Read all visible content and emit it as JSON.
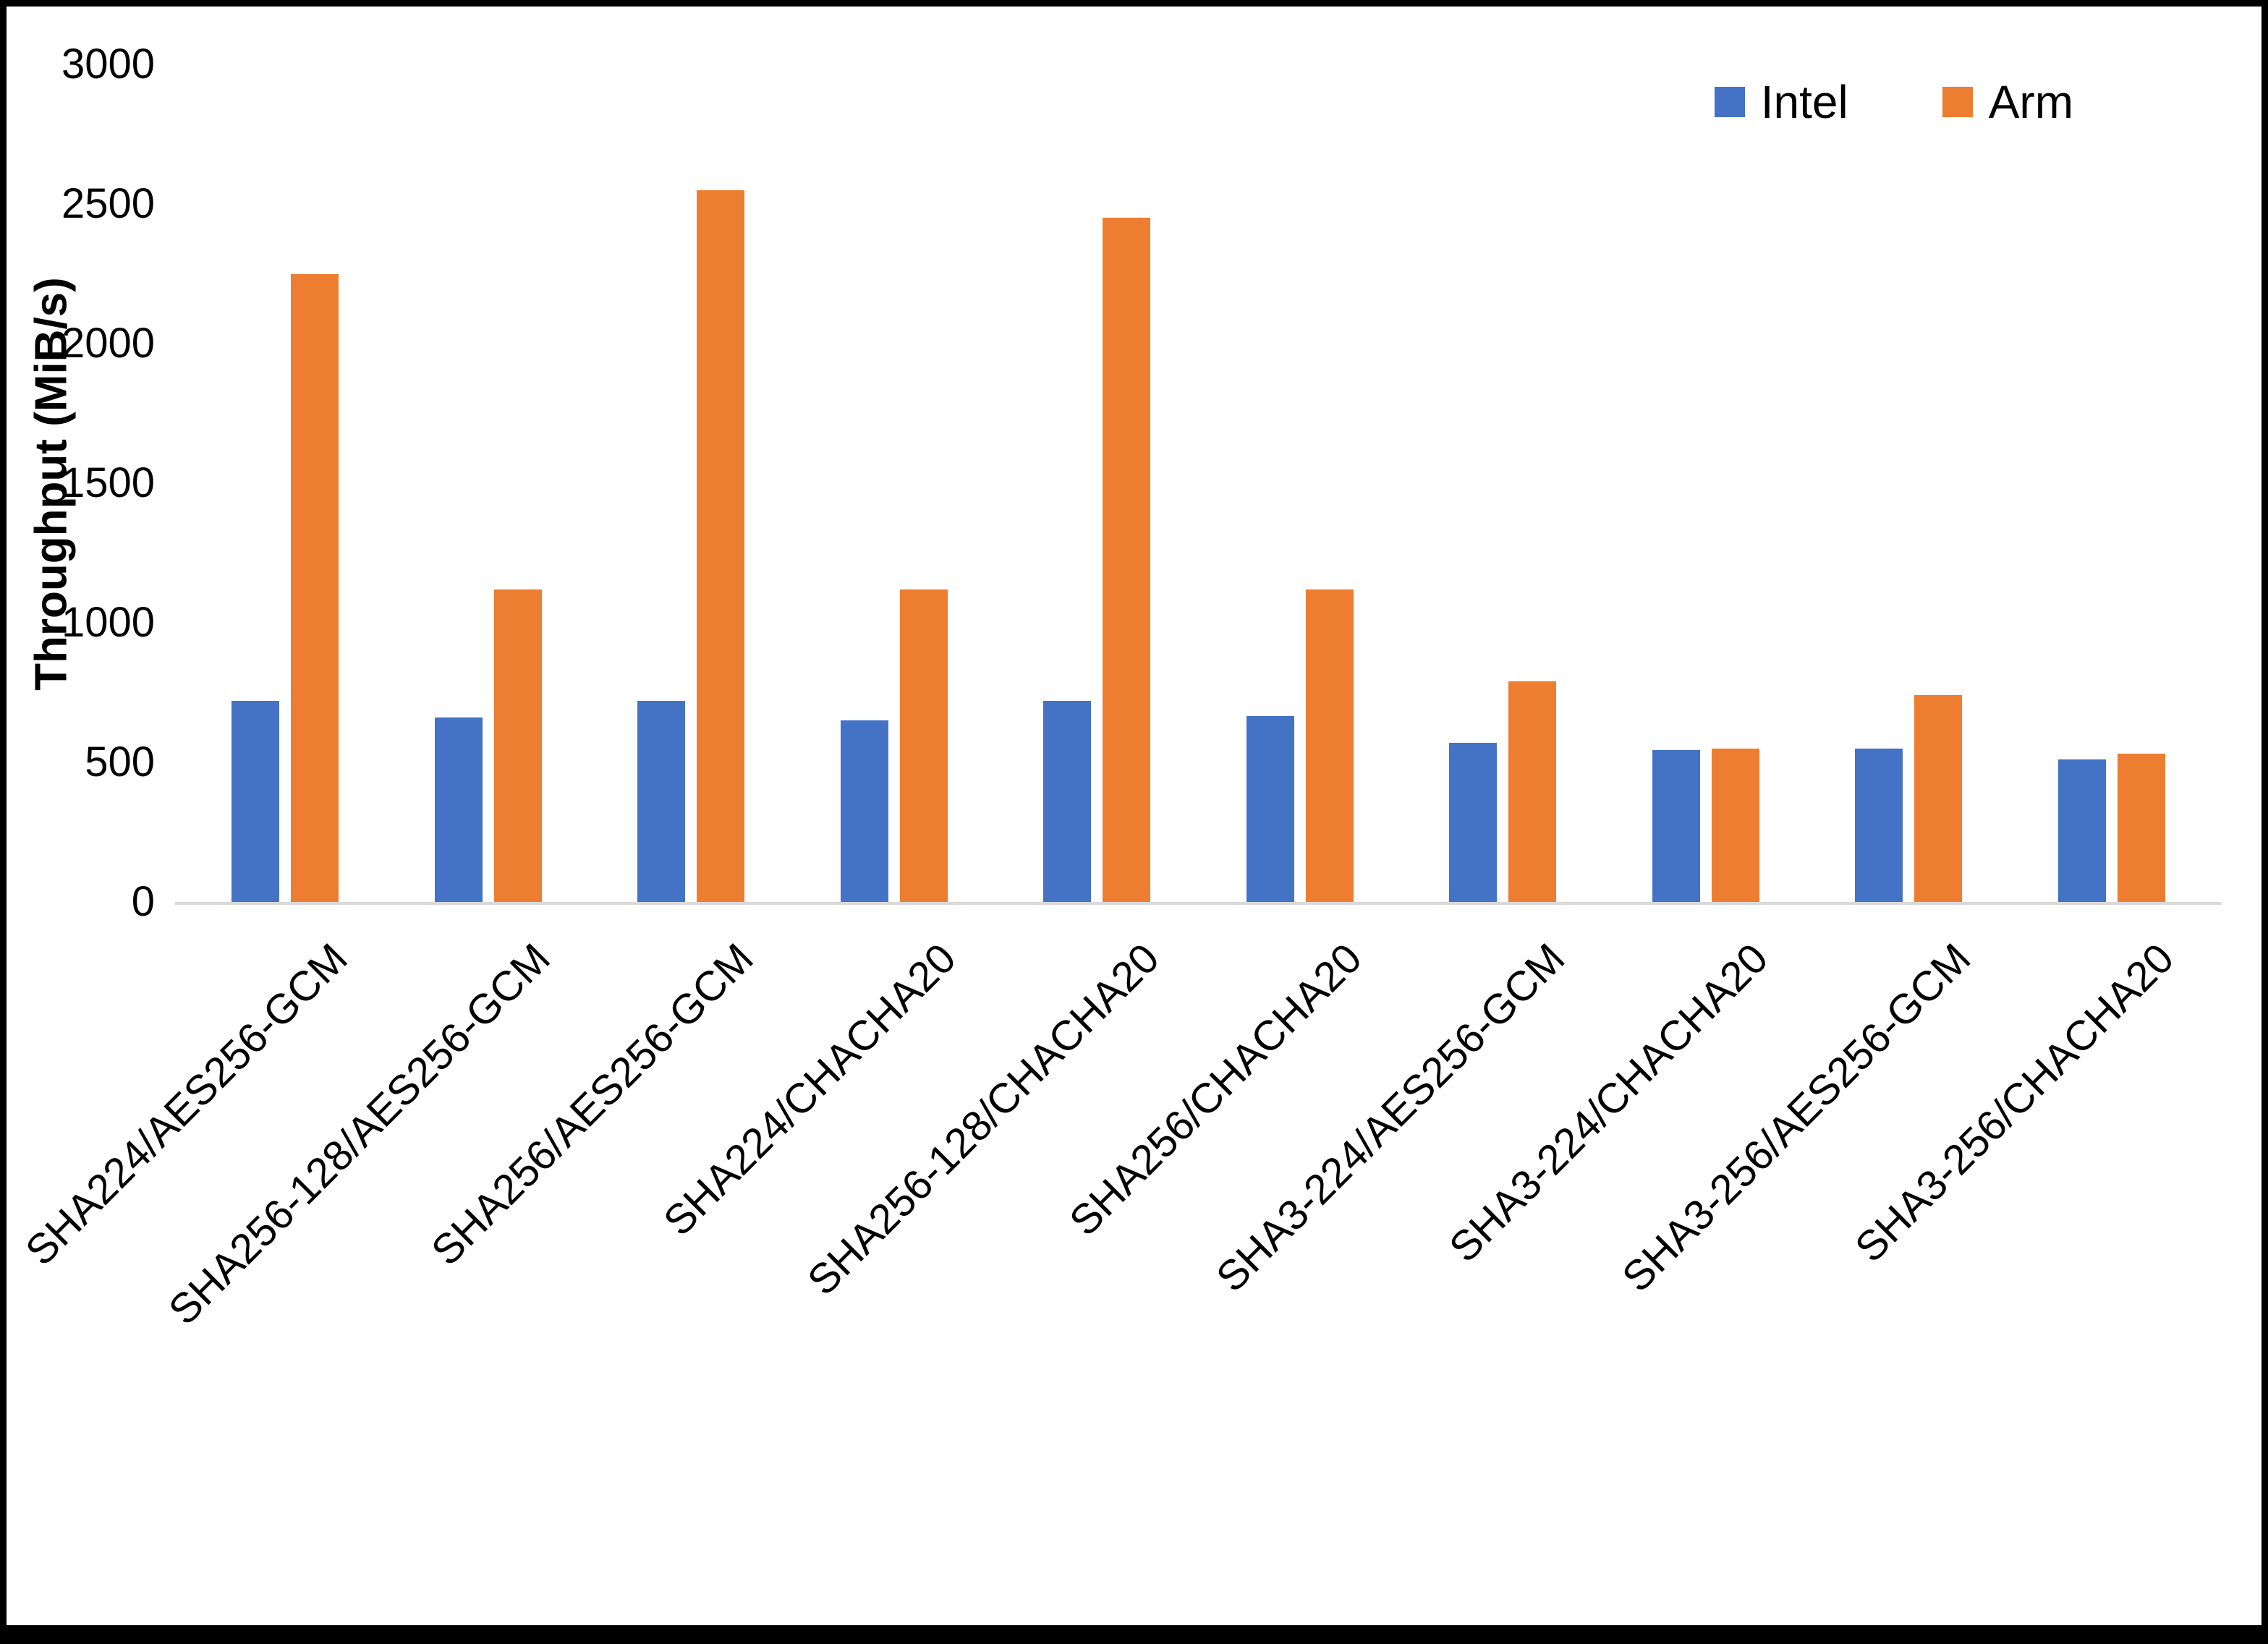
{
  "chart_data": {
    "type": "bar",
    "title": "",
    "xlabel": "",
    "ylabel": "Throughput (MiB/s)",
    "ylim": [
      0,
      3000
    ],
    "ytick_step": 500,
    "grid": false,
    "legend_position": "top-right",
    "categories": [
      "SHA224/AES256-GCM",
      "SHA256-128/AES256-GCM",
      "SHA256/AES256-GCM",
      "SHA224/CHACHA20",
      "SHA256-128/CHACHA20",
      "SHA256/CHACHA20",
      "SHA3-224/AES256-GCM",
      "SHA3-224/CHACHA20",
      "SHA3-256/AES256-GCM",
      "SHA3-256/CHACHA20"
    ],
    "series": [
      {
        "name": "Intel",
        "color": "#4472C4",
        "values": [
          720,
          660,
          720,
          650,
          720,
          665,
          570,
          545,
          550,
          510
        ]
      },
      {
        "name": "Arm",
        "color": "#ED7D31",
        "values": [
          2250,
          1120,
          2550,
          1120,
          2450,
          1120,
          790,
          550,
          740,
          530
        ]
      }
    ],
    "colors": {
      "axis_line": "#D9D9D9",
      "text": "#000000"
    }
  }
}
